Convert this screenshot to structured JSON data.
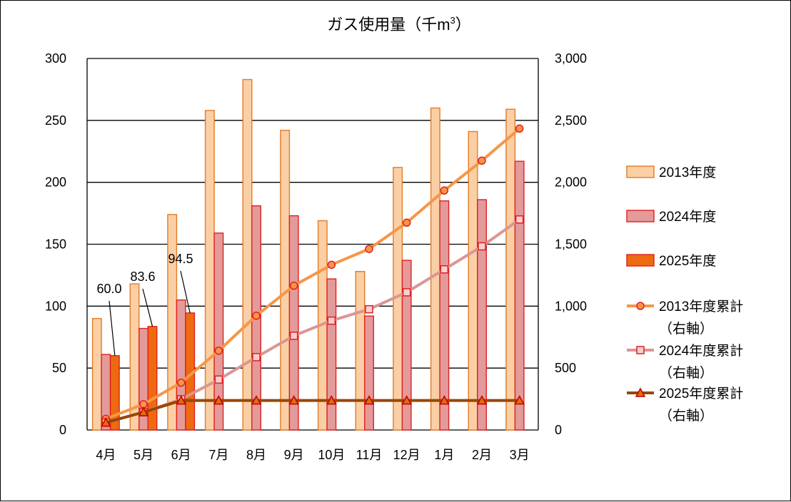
{
  "chart_data": {
    "type": "bar",
    "title": "ガス使用量（千m",
    "title_sup": "3",
    "title_close": "）",
    "categories": [
      "4月",
      "5月",
      "6月",
      "7月",
      "8月",
      "9月",
      "10月",
      "11月",
      "12月",
      "1月",
      "2月",
      "3月"
    ],
    "y_left": {
      "range": [
        0,
        300
      ],
      "ticks": [
        "0",
        "50",
        "100",
        "150",
        "200",
        "250",
        "300"
      ]
    },
    "y_right": {
      "range": [
        0,
        3000
      ],
      "ticks": [
        "0",
        "500",
        "1,000",
        "1,500",
        "2,000",
        "2,500",
        "3,000"
      ]
    },
    "grid": true,
    "legend_position": "right",
    "bar_series": [
      {
        "name": "2013年度",
        "values": [
          90,
          118,
          174,
          258,
          283,
          242,
          169,
          128,
          212,
          260,
          241,
          259
        ],
        "fill": "#FBCFA5",
        "stroke": "#E37B27"
      },
      {
        "name": "2024年度",
        "values": [
          61,
          82,
          105,
          159,
          181,
          173,
          122,
          92,
          137,
          185,
          186,
          217
        ],
        "fill": "#E39A9A",
        "stroke": "#E02020"
      },
      {
        "name": "2025年度",
        "values": [
          60.0,
          83.6,
          94.5,
          null,
          null,
          null,
          null,
          null,
          null,
          null,
          null,
          null
        ],
        "fill": "#EE6A10",
        "stroke": "#E02020"
      }
    ],
    "line_series": [
      {
        "name": "2013年度累計",
        "name_suffix": "（右軸）",
        "axis": "right",
        "values": [
          90,
          208,
          382,
          640,
          923,
          1165,
          1334,
          1462,
          1674,
          1934,
          2175,
          2434
        ],
        "color": "#F79646",
        "marker": "circle",
        "marker_fill": "#F79646",
        "marker_stroke": "#E02020"
      },
      {
        "name": "2024年度累計",
        "name_suffix": "（右軸）",
        "axis": "right",
        "values": [
          61,
          143,
          248,
          407,
          588,
          761,
          883,
          975,
          1112,
          1297,
          1483,
          1700
        ],
        "color": "#DA9694",
        "marker": "square",
        "marker_fill": "#FBCFD0",
        "marker_stroke": "#E02020"
      },
      {
        "name": "2025年度累計",
        "name_suffix": "（右軸）",
        "axis": "right",
        "values": [
          60,
          144,
          238,
          238,
          238,
          238,
          238,
          238,
          238,
          238,
          238,
          238
        ],
        "color": "#974706",
        "marker": "triangle",
        "marker_fill": "#E46C0A",
        "marker_stroke": "#C00000"
      }
    ],
    "data_labels": [
      {
        "category_index": 0,
        "series": "2025年度",
        "text": "60.0"
      },
      {
        "category_index": 1,
        "series": "2025年度",
        "text": "83.6"
      },
      {
        "category_index": 2,
        "series": "2025年度",
        "text": "94.5"
      }
    ]
  }
}
